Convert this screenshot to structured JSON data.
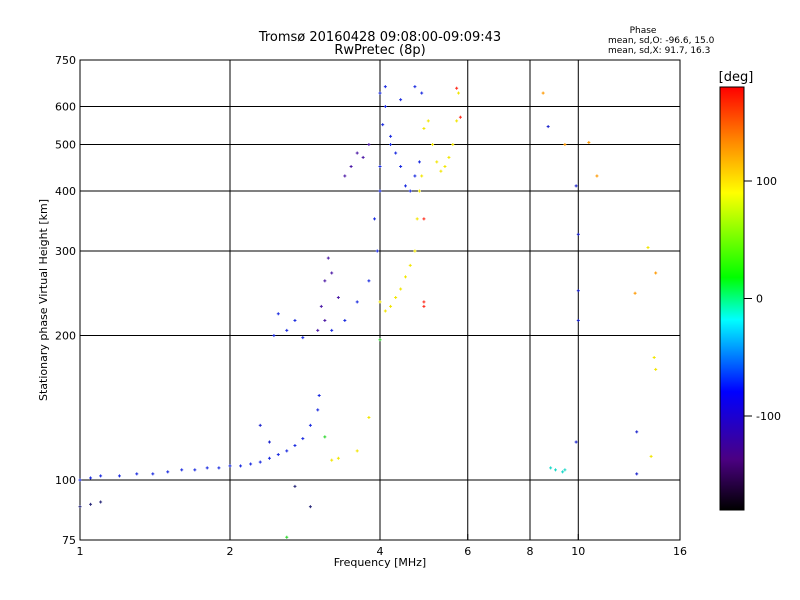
{
  "chart_data": {
    "type": "scatter",
    "title": "Tromsø 20160428 09:08:00-09:09:43",
    "subtitle": "RwPretec (8p)",
    "phase_box": {
      "heading": "Phase",
      "line1": "mean, sd,O: -96.6, 15.0",
      "line2": "mean, sd,X:  91.7, 16.3"
    },
    "xlabel": "Frequency [MHz]",
    "ylabel": "Stationary phase Virtual Height [km]",
    "x_scale": "log",
    "y_scale": "log",
    "xlim": [
      1,
      16
    ],
    "ylim": [
      75,
      750
    ],
    "x_ticks": [
      1,
      2,
      4,
      6,
      8,
      10,
      16
    ],
    "x_tick_labels": [
      "1",
      "2",
      "4",
      "6",
      "8",
      "10",
      "16"
    ],
    "y_ticks": [
      75,
      100,
      200,
      300,
      400,
      500,
      600,
      750
    ],
    "y_tick_labels": [
      "75",
      "100",
      "200",
      "300",
      "400",
      "500",
      "600",
      "750"
    ],
    "grid": true,
    "colorbar": {
      "label": "[deg]",
      "range": [
        -180,
        180
      ],
      "ticks": [
        100,
        0,
        -100
      ],
      "tick_labels": [
        "100",
        "0",
        "-100"
      ]
    },
    "series": [
      {
        "color": "#1a2be0",
        "phase": -100,
        "points": [
          [
            1.0,
            100
          ],
          [
            1.05,
            101
          ],
          [
            1.1,
            102
          ],
          [
            1.2,
            102
          ],
          [
            1.3,
            103
          ],
          [
            1.4,
            103
          ],
          [
            1.5,
            104
          ],
          [
            1.6,
            105
          ],
          [
            1.7,
            105
          ],
          [
            1.8,
            106
          ],
          [
            1.9,
            106
          ],
          [
            2.0,
            107
          ],
          [
            2.1,
            107
          ],
          [
            2.2,
            108
          ],
          [
            2.3,
            109
          ],
          [
            2.4,
            111
          ],
          [
            2.5,
            113
          ],
          [
            2.6,
            115
          ],
          [
            2.7,
            118
          ],
          [
            2.8,
            122
          ],
          [
            2.9,
            130
          ],
          [
            3.0,
            140
          ],
          [
            3.02,
            150
          ],
          [
            2.45,
            200
          ],
          [
            2.6,
            205
          ],
          [
            2.8,
            198
          ],
          [
            2.7,
            215
          ],
          [
            2.5,
            222
          ],
          [
            3.2,
            205
          ],
          [
            3.4,
            215
          ],
          [
            3.6,
            235
          ],
          [
            3.8,
            260
          ],
          [
            3.95,
            300
          ],
          [
            4.0,
            400
          ],
          [
            4.05,
            550
          ],
          [
            4.0,
            640
          ],
          [
            4.1,
            660
          ],
          [
            4.1,
            600
          ],
          [
            4.2,
            500
          ],
          [
            4.3,
            480
          ],
          [
            4.4,
            450
          ],
          [
            4.5,
            410
          ],
          [
            4.6,
            400
          ],
          [
            4.7,
            430
          ],
          [
            4.8,
            460
          ],
          [
            4.85,
            640
          ],
          [
            4.7,
            660
          ],
          [
            4.4,
            620
          ],
          [
            4.2,
            520
          ],
          [
            4.0,
            450
          ],
          [
            3.9,
            350
          ]
        ]
      },
      {
        "color": "#4d1aa6",
        "phase": -130,
        "points": [
          [
            3.0,
            205
          ],
          [
            3.05,
            230
          ],
          [
            3.1,
            260
          ],
          [
            3.15,
            290
          ],
          [
            3.2,
            270
          ],
          [
            3.3,
            240
          ],
          [
            3.1,
            215
          ],
          [
            3.5,
            450
          ],
          [
            3.6,
            480
          ],
          [
            3.7,
            470
          ],
          [
            3.8,
            500
          ],
          [
            3.4,
            430
          ]
        ]
      },
      {
        "color": "#f2e600",
        "phase": 100,
        "points": [
          [
            4.0,
            235
          ],
          [
            4.1,
            225
          ],
          [
            4.2,
            230
          ],
          [
            4.3,
            240
          ],
          [
            4.4,
            250
          ],
          [
            4.5,
            265
          ],
          [
            4.6,
            280
          ],
          [
            4.7,
            300
          ],
          [
            4.75,
            350
          ],
          [
            4.8,
            400
          ],
          [
            4.85,
            430
          ],
          [
            4.9,
            540
          ],
          [
            5.0,
            560
          ],
          [
            5.1,
            500
          ],
          [
            5.2,
            460
          ],
          [
            5.3,
            440
          ],
          [
            5.4,
            450
          ],
          [
            5.5,
            470
          ],
          [
            5.6,
            500
          ],
          [
            5.7,
            560
          ],
          [
            5.75,
            640
          ],
          [
            3.2,
            110
          ],
          [
            3.3,
            111
          ],
          [
            3.6,
            115
          ],
          [
            3.8,
            135
          ],
          [
            14.0,
            112
          ],
          [
            14.2,
            180
          ],
          [
            14.3,
            170
          ],
          [
            13.8,
            305
          ]
        ]
      },
      {
        "color": "#ff9900",
        "phase": 120,
        "points": [
          [
            8.5,
            640
          ],
          [
            9.4,
            500
          ],
          [
            10.5,
            505
          ],
          [
            10.9,
            430
          ],
          [
            13.0,
            245
          ],
          [
            14.3,
            270
          ]
        ]
      },
      {
        "color": "#ff2a1a",
        "phase": 170,
        "points": [
          [
            5.7,
            655
          ],
          [
            5.8,
            570
          ],
          [
            4.9,
            350
          ],
          [
            4.9,
            235
          ],
          [
            4.9,
            230
          ]
        ]
      },
      {
        "color": "#1a22cc",
        "phase": -110,
        "points": [
          [
            8.7,
            545
          ],
          [
            9.9,
            410
          ],
          [
            10.0,
            325
          ],
          [
            10.0,
            248
          ],
          [
            10.0,
            215
          ],
          [
            9.9,
            120
          ],
          [
            13.1,
            126
          ],
          [
            13.1,
            103
          ],
          [
            2.4,
            120
          ],
          [
            2.3,
            130
          ]
        ]
      },
      {
        "color": "#18d8c8",
        "phase": 10,
        "points": [
          [
            9.0,
            105
          ],
          [
            9.3,
            104
          ],
          [
            9.4,
            105
          ],
          [
            8.8,
            106
          ]
        ]
      },
      {
        "color": "#2bd62b",
        "phase": 40,
        "points": [
          [
            2.6,
            76
          ],
          [
            3.1,
            123
          ],
          [
            4.0,
            196
          ]
        ]
      },
      {
        "color": "#2a2a7a",
        "phase": -150,
        "points": [
          [
            1.0,
            88
          ],
          [
            1.05,
            89
          ],
          [
            1.1,
            90
          ],
          [
            2.7,
            97
          ],
          [
            2.9,
            88
          ]
        ]
      }
    ]
  }
}
